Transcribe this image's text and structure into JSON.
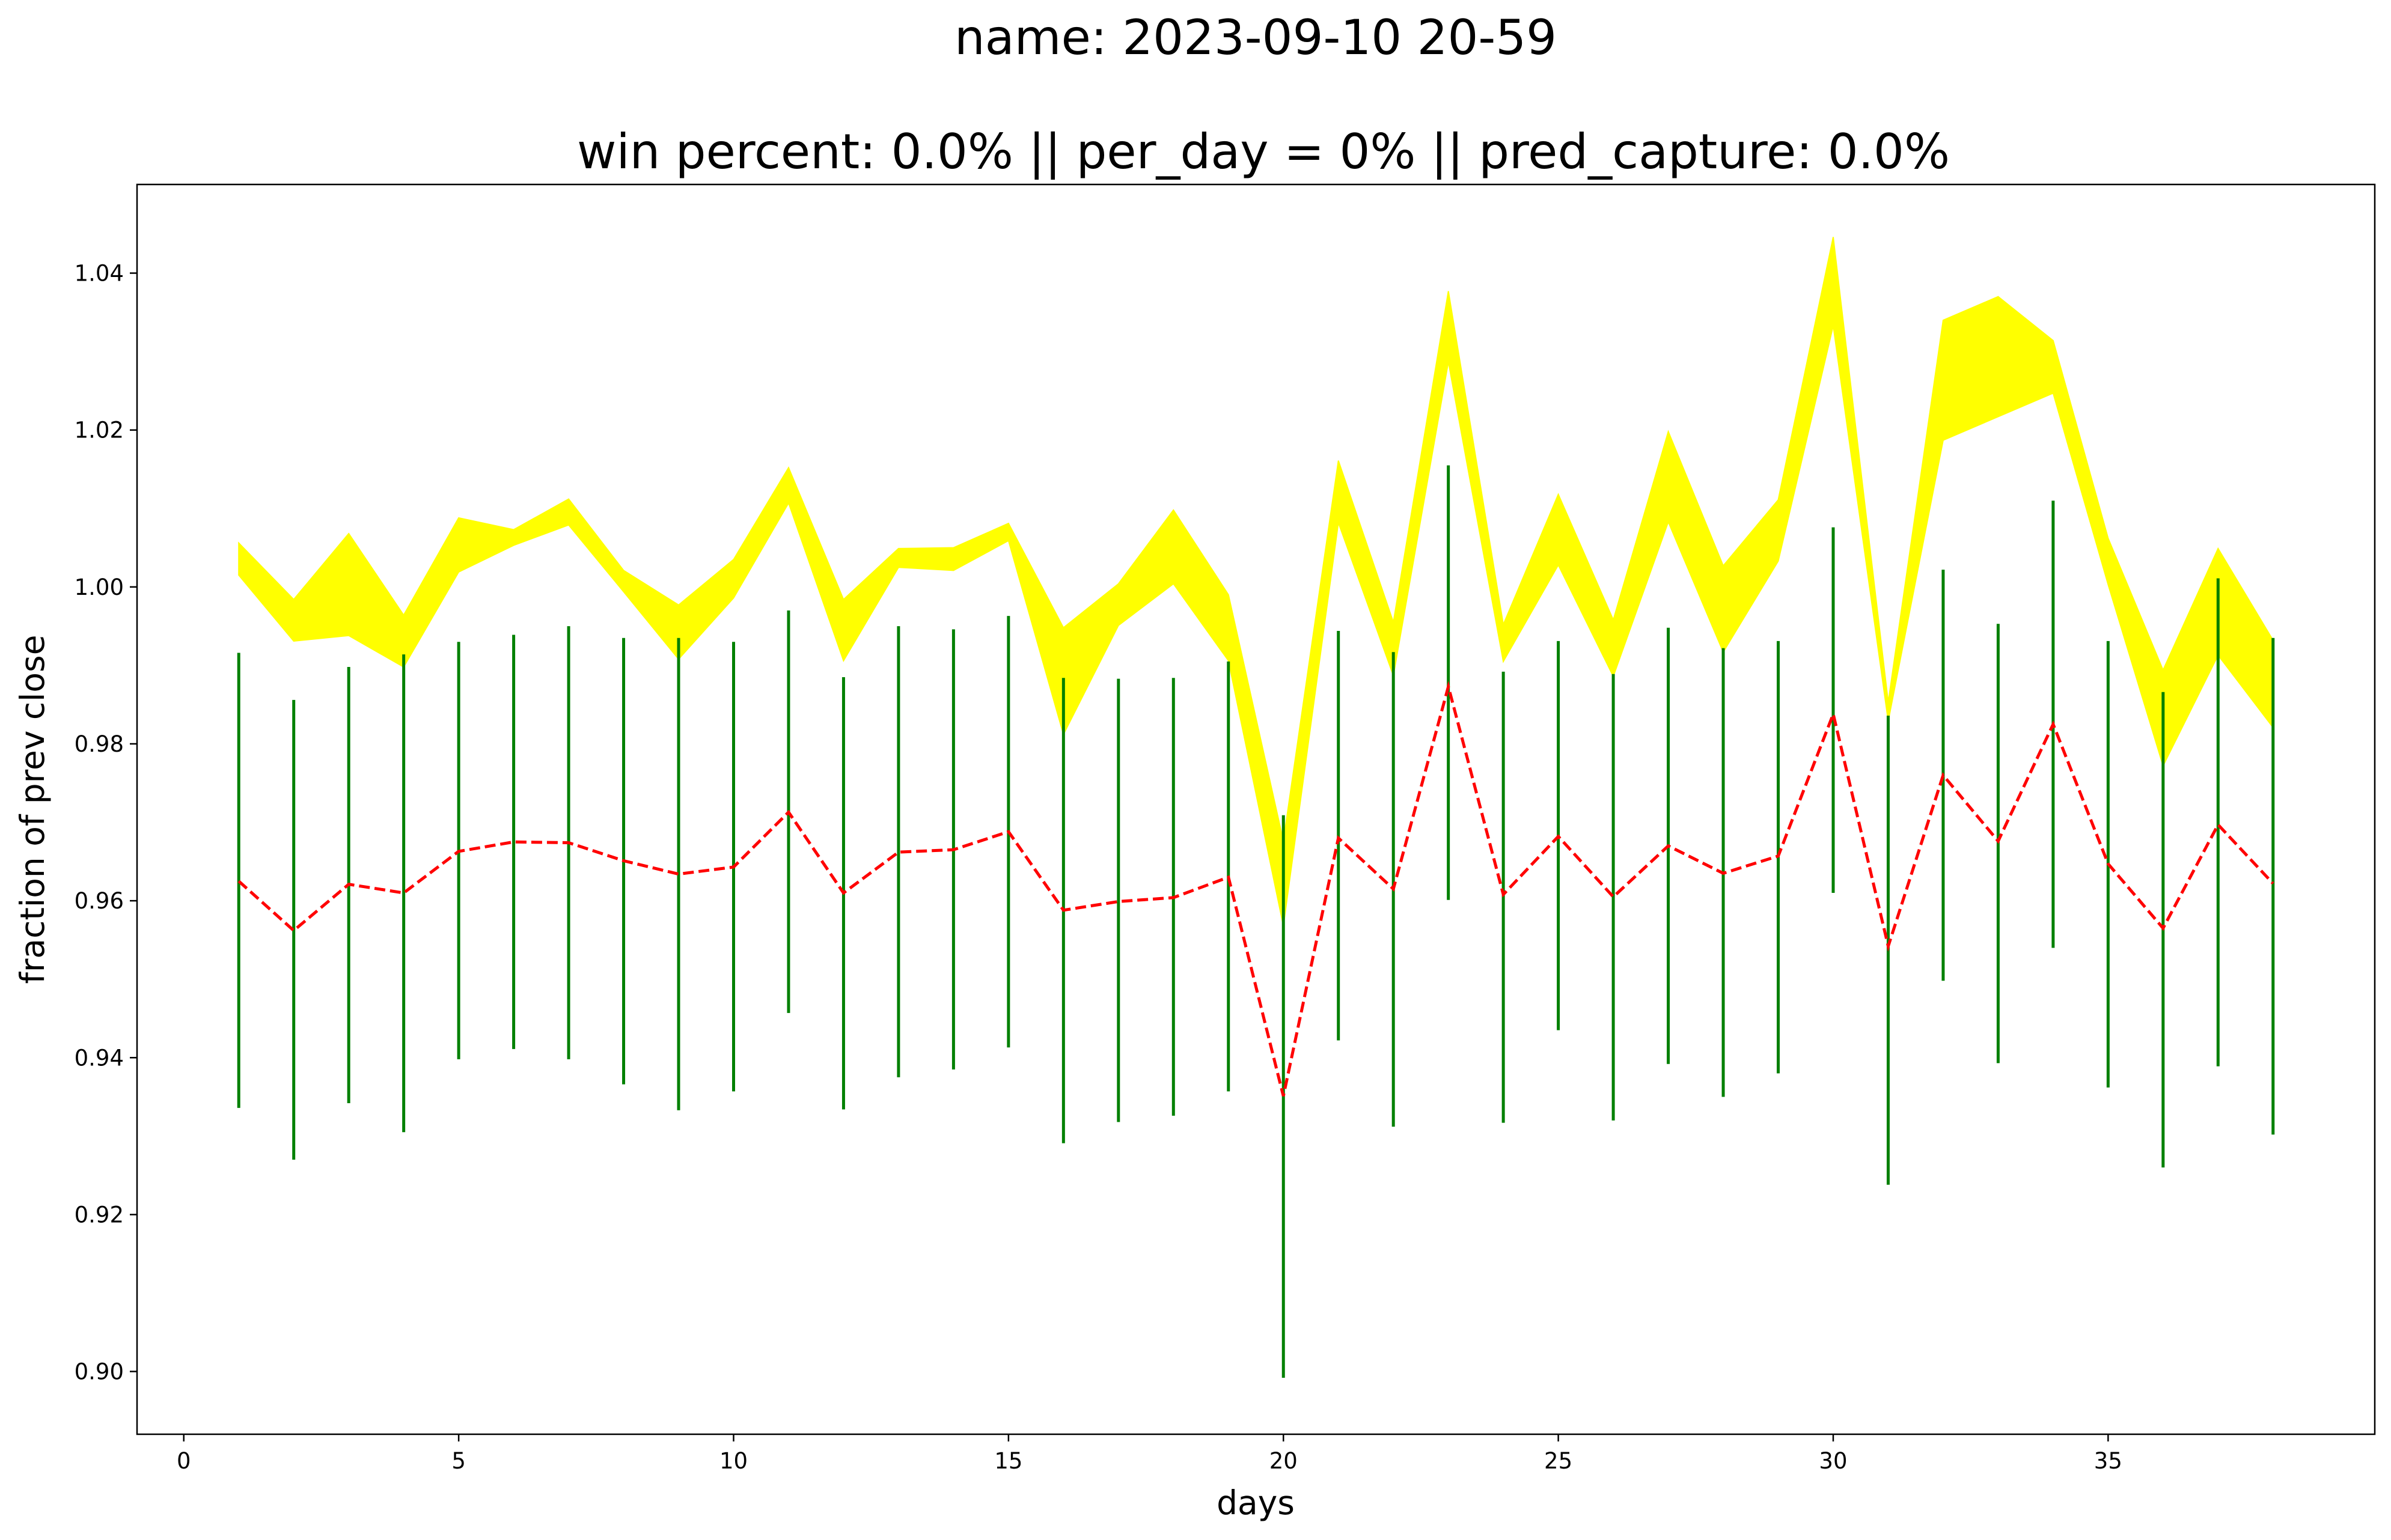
{
  "chart_data": {
    "type": "line",
    "title": "name: 2023-09-10 20-59",
    "subtitle": "win percent: 0.0%  || per_day = 0% || pred_capture: 0.0%",
    "xlabel": "days",
    "ylabel": "fraction of prev close",
    "xlim": [
      -0.85,
      39.85
    ],
    "ylim": [
      0.892,
      1.0513
    ],
    "grid": false,
    "x_ticks": [
      0,
      5,
      10,
      15,
      20,
      25,
      30,
      35
    ],
    "y_ticks": [
      0.9,
      0.92,
      0.94,
      0.96,
      0.98,
      1.0,
      1.02,
      1.04
    ],
    "x": [
      1,
      2,
      3,
      4,
      5,
      6,
      7,
      8,
      9,
      10,
      11,
      12,
      13,
      14,
      15,
      16,
      17,
      18,
      19,
      20,
      21,
      22,
      23,
      24,
      25,
      26,
      27,
      28,
      29,
      30,
      31,
      32,
      33,
      34,
      35,
      36,
      37,
      38
    ],
    "band": {
      "name": "",
      "color": "#ffff00",
      "upper": [
        1.0056,
        0.9984,
        1.0068,
        0.9964,
        1.0088,
        1.0073,
        1.0112,
        1.0021,
        0.9977,
        1.0035,
        1.0152,
        0.9984,
        1.0049,
        1.005,
        1.0081,
        0.9948,
        1.0004,
        1.0098,
        0.999,
        0.9676,
        1.0161,
        0.9955,
        1.0377,
        0.9952,
        1.0118,
        0.9958,
        1.0198,
        1.0027,
        1.0111,
        1.0446,
        0.9853,
        1.034,
        1.037,
        1.0314,
        1.0062,
        0.9894,
        1.0049,
        0.9932
      ],
      "lower": [
        1.0015,
        0.9931,
        0.9938,
        0.9898,
        1.0019,
        1.0053,
        1.0079,
        0.9994,
        0.9908,
        0.9986,
        1.0107,
        0.9906,
        1.0025,
        1.0021,
        1.0059,
        0.9812,
        0.9951,
        1.0004,
        0.9906,
        0.9568,
        1.0082,
        0.9887,
        1.0287,
        0.9905,
        1.0028,
        0.9886,
        1.0083,
        0.9917,
        1.0033,
        1.0333,
        0.9829,
        1.0187,
        1.0217,
        1.0247,
        1.0003,
        0.9772,
        0.9913,
        0.9821
      ]
    },
    "ranges": {
      "name": "",
      "color": "#008000",
      "high": [
        0.9916,
        0.9856,
        0.9898,
        0.9914,
        0.993,
        0.9939,
        0.995,
        0.9935,
        0.9935,
        0.993,
        0.997,
        0.9885,
        0.995,
        0.9946,
        0.9963,
        0.9884,
        0.9883,
        0.9884,
        0.9905,
        0.9709,
        0.9944,
        0.9917,
        1.0155,
        0.9892,
        0.9931,
        0.9889,
        0.9948,
        0.9922,
        0.9931,
        1.0076,
        0.9836,
        1.0022,
        0.9953,
        1.011,
        0.9931,
        0.9866,
        1.0011,
        0.9935
      ],
      "low": [
        0.9336,
        0.927,
        0.9342,
        0.9305,
        0.9398,
        0.9411,
        0.9398,
        0.9366,
        0.9333,
        0.9357,
        0.9457,
        0.9334,
        0.9375,
        0.9385,
        0.9413,
        0.9291,
        0.9318,
        0.9326,
        0.9357,
        0.8992,
        0.9422,
        0.9312,
        0.9601,
        0.9317,
        0.9435,
        0.932,
        0.9392,
        0.935,
        0.938,
        0.961,
        0.9238,
        0.9498,
        0.9393,
        0.954,
        0.9362,
        0.926,
        0.9389,
        0.9302
      ]
    },
    "predicted": {
      "name": "",
      "color": "#ff0000",
      "style": "dashed",
      "values": [
        0.9625,
        0.9562,
        0.9621,
        0.961,
        0.9663,
        0.9675,
        0.9674,
        0.9651,
        0.9634,
        0.9643,
        0.9713,
        0.961,
        0.9662,
        0.9665,
        0.9688,
        0.9588,
        0.9599,
        0.9604,
        0.963,
        0.9351,
        0.968,
        0.9615,
        0.9873,
        0.9608,
        0.9682,
        0.9605,
        0.967,
        0.9635,
        0.9657,
        0.9838,
        0.9542,
        0.976,
        0.9676,
        0.9825,
        0.9647,
        0.9565,
        0.9697,
        0.9622
      ]
    }
  }
}
